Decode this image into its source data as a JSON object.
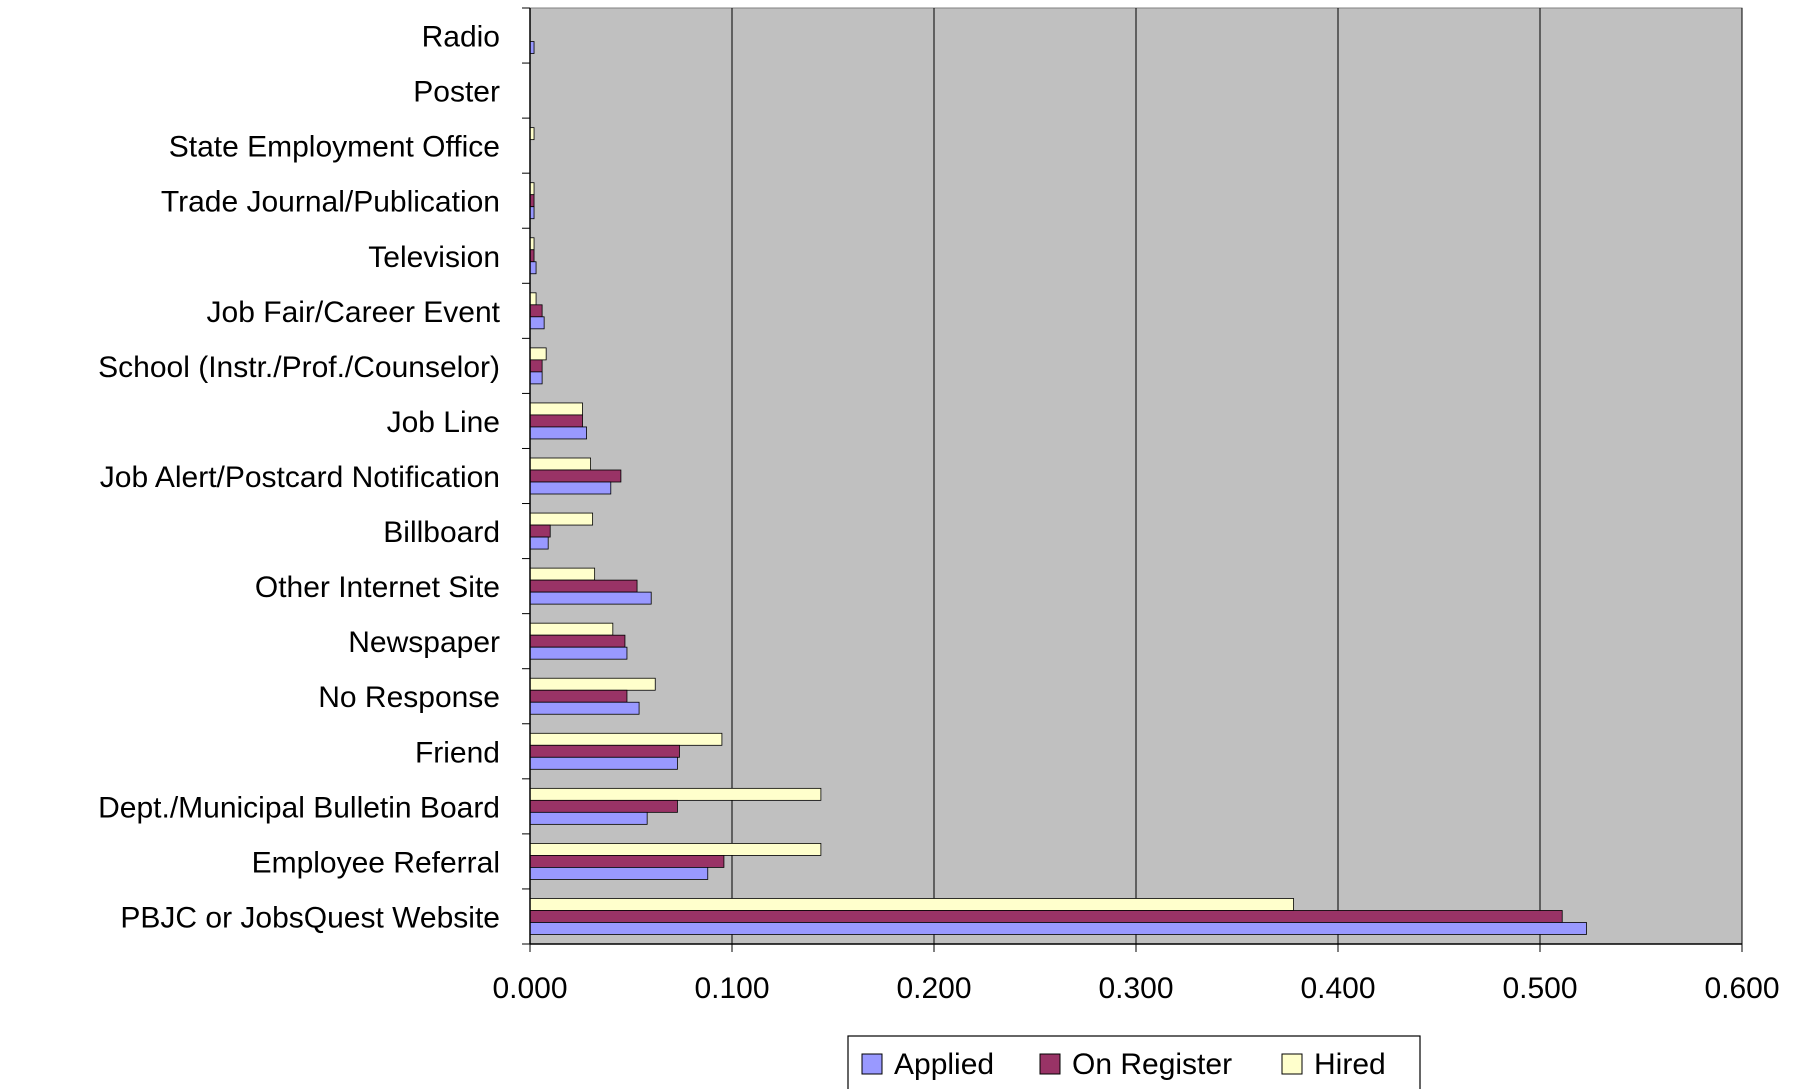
{
  "chart_data": {
    "type": "bar",
    "orientation": "horizontal",
    "categories": [
      "Radio",
      "Poster",
      "State Employment Office",
      "Trade Journal/Publication",
      "Television",
      "Job Fair/Career Event",
      "School (Instr./Prof./Counselor)",
      "Job Line",
      "Job Alert/Postcard Notification",
      "Billboard",
      "Other Internet Site",
      "Newspaper",
      "No Response",
      "Friend",
      "Dept./Municipal Bulletin Board",
      "Employee Referral",
      "PBJC or JobsQuest Website"
    ],
    "series": [
      {
        "name": "Applied",
        "color": "#9999ff",
        "values": [
          0.002,
          0.0,
          0.0,
          0.002,
          0.003,
          0.007,
          0.006,
          0.028,
          0.04,
          0.009,
          0.06,
          0.048,
          0.054,
          0.073,
          0.058,
          0.088,
          0.523
        ]
      },
      {
        "name": "On Register",
        "color": "#993366",
        "values": [
          0.0,
          0.0,
          0.0,
          0.002,
          0.002,
          0.006,
          0.006,
          0.026,
          0.045,
          0.01,
          0.053,
          0.047,
          0.048,
          0.074,
          0.073,
          0.096,
          0.511
        ]
      },
      {
        "name": "Hired",
        "color": "#ffffcc",
        "values": [
          0.0,
          0.0,
          0.002,
          0.002,
          0.002,
          0.003,
          0.008,
          0.026,
          0.03,
          0.031,
          0.032,
          0.041,
          0.062,
          0.095,
          0.144,
          0.144,
          0.378
        ]
      }
    ],
    "x_ticks": [
      "0.000",
      "0.100",
      "0.200",
      "0.300",
      "0.400",
      "0.500",
      "0.600"
    ],
    "xlim": [
      0,
      0.6
    ],
    "title": "",
    "xlabel": "",
    "ylabel": "",
    "grid": "vertical major gridlines",
    "legend_position": "bottom",
    "plot_background": "#c0c0c0"
  }
}
